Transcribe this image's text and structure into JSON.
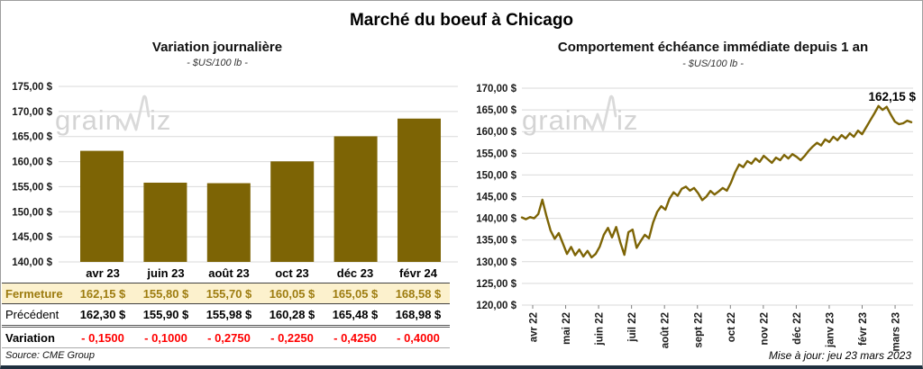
{
  "header": {
    "title": "Marché du boeuf à Chicago"
  },
  "watermark": {
    "part1": "grain",
    "part2": "iz"
  },
  "colors": {
    "accent_gold": "#7D6405",
    "fermeture_bg": "#FCF1CD",
    "fermeture_text": "#9D7C10",
    "variation_red": "#FF0000",
    "gridline": "#D9D9D9",
    "watermark_gray": "#D4D4D4"
  },
  "table": {
    "columns": [
      "avr 23",
      "juin 23",
      "août 23",
      "oct 23",
      "déc 23",
      "févr 24"
    ],
    "rows": [
      {
        "label": "Fermeture",
        "values": [
          "162,15 $",
          "155,80 $",
          "155,70 $",
          "160,05 $",
          "165,05 $",
          "168,58 $"
        ]
      },
      {
        "label": "Précédent",
        "values": [
          "162,30 $",
          "155,90 $",
          "155,98 $",
          "160,28 $",
          "165,48 $",
          "168,98 $"
        ]
      },
      {
        "label": "Variation",
        "values": [
          "- 0,1500",
          "- 0,1000",
          "- 0,2750",
          "- 0,2250",
          "- 0,4250",
          "- 0,4000"
        ]
      }
    ]
  },
  "footer": {
    "source": "Source: CME Group",
    "update_note": "Mise à jour: jeu 23 mars 2023"
  },
  "chart_data": [
    {
      "type": "bar",
      "title": "Variation journalière",
      "subtitle": "- $US/100 lb -",
      "unit": "$US/100 lb",
      "categories": [
        "avr 23",
        "juin 23",
        "août 23",
        "oct 23",
        "déc 23",
        "févr 24"
      ],
      "values": [
        162.15,
        155.8,
        155.7,
        160.05,
        165.05,
        168.58
      ],
      "ylim": [
        140,
        175
      ],
      "ytick_step": 5,
      "ytick_labels": [
        "175,00 $",
        "170,00 $",
        "165,00 $",
        "160,00 $",
        "155,00 $",
        "150,00 $",
        "145,00 $",
        "140,00 $"
      ],
      "grid": true,
      "legend": false
    },
    {
      "type": "line",
      "title": "Comportement échéance immédiate depuis 1 an",
      "subtitle": "- $US/100 lb -",
      "unit": "$US/100 lb",
      "x_labels": [
        "avr 22",
        "mai 22",
        "juin 22",
        "juil 22",
        "août 22",
        "sept 22",
        "oct 22",
        "nov 22",
        "déc 22",
        "janv 23",
        "févr 23",
        "mars 23"
      ],
      "values": [
        140.2,
        139.8,
        140.3,
        140.0,
        141.0,
        144.3,
        140.5,
        137.2,
        135.3,
        136.6,
        134.2,
        131.8,
        133.4,
        131.5,
        132.8,
        131.2,
        132.5,
        131.0,
        131.8,
        133.5,
        136.2,
        137.8,
        135.6,
        138.0,
        134.5,
        131.6,
        136.8,
        137.4,
        133.2,
        134.8,
        136.2,
        135.4,
        139.0,
        141.5,
        142.8,
        142.0,
        144.5,
        146.0,
        145.2,
        146.8,
        147.3,
        146.4,
        147.0,
        145.8,
        144.2,
        145.0,
        146.3,
        145.5,
        146.2,
        147.0,
        146.4,
        148.2,
        150.6,
        152.4,
        151.8,
        153.2,
        152.6,
        153.8,
        153.0,
        154.4,
        153.6,
        152.8,
        154.0,
        153.4,
        154.6,
        153.8,
        154.8,
        154.2,
        153.4,
        154.4,
        155.6,
        156.6,
        157.4,
        156.8,
        158.2,
        157.6,
        158.8,
        158.0,
        159.2,
        158.4,
        159.6,
        158.8,
        160.2,
        159.4,
        161.0,
        162.6,
        164.2,
        165.9,
        165.0,
        165.7,
        163.9,
        162.3,
        161.7,
        161.9,
        162.5,
        162.15
      ],
      "ylim": [
        120,
        170
      ],
      "ytick_step": 5,
      "ytick_labels": [
        "170,00 $",
        "165,00 $",
        "160,00 $",
        "155,00 $",
        "150,00 $",
        "145,00 $",
        "140,00 $",
        "135,00 $",
        "130,00 $",
        "125,00 $",
        "120,00 $"
      ],
      "last_value_label": "162,15 $",
      "grid": true,
      "legend": false
    }
  ]
}
